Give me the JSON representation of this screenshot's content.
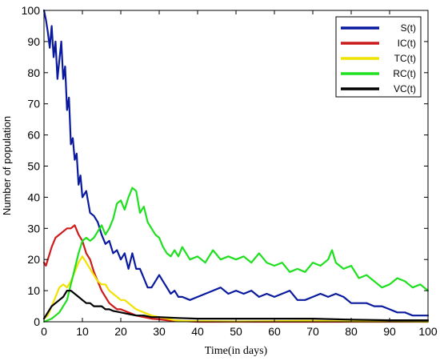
{
  "chart_data": {
    "type": "line",
    "title": "",
    "xlabel": "Time(in days)",
    "ylabel": "Number of population",
    "xlim": [
      0,
      100
    ],
    "ylim": [
      0,
      100
    ],
    "xticks": [
      "0",
      "10",
      "20",
      "30",
      "40",
      "50",
      "60",
      "70",
      "80",
      "90",
      "100"
    ],
    "yticks": [
      "0",
      "10",
      "20",
      "30",
      "40",
      "50",
      "60",
      "70",
      "80",
      "90",
      "100"
    ],
    "grid": false,
    "legend_position": "top-right",
    "series": [
      {
        "name": "S(t)",
        "color": "#0a1a9e",
        "x": [
          0,
          0.5,
          1,
          1.5,
          2,
          2.5,
          3,
          3.5,
          4,
          4.5,
          5,
          5.5,
          6,
          6.5,
          7,
          7.5,
          8,
          8.5,
          9,
          9.5,
          10,
          11,
          12,
          13,
          14,
          15,
          16,
          17,
          18,
          19,
          20,
          21,
          22,
          23,
          24,
          25,
          26,
          27,
          28,
          29,
          30,
          31,
          32,
          33,
          34,
          35,
          36,
          38,
          40,
          42,
          44,
          46,
          48,
          50,
          52,
          54,
          56,
          58,
          60,
          62,
          64,
          66,
          68,
          70,
          72,
          74,
          76,
          78,
          80,
          82,
          84,
          86,
          88,
          90,
          92,
          94,
          96,
          98,
          100
        ],
        "y": [
          100,
          97,
          93,
          88,
          95,
          85,
          90,
          78,
          84,
          90,
          78,
          82,
          68,
          72,
          57,
          59,
          52,
          54,
          44,
          47,
          40,
          42,
          35,
          34,
          32,
          28,
          25,
          26,
          22,
          23,
          20,
          22,
          17,
          22,
          17,
          17,
          14,
          11,
          11,
          13,
          15,
          13,
          11,
          9,
          10,
          8,
          8,
          7,
          8,
          9,
          10,
          11,
          9,
          10,
          9,
          10,
          8,
          9,
          8,
          9,
          10,
          7,
          7,
          8,
          9,
          8,
          9,
          8,
          6,
          6,
          6,
          5,
          5,
          4,
          3,
          3,
          2,
          2,
          2
        ]
      },
      {
        "name": "IC(t)",
        "color": "#cc1b1b",
        "x": [
          0,
          0.5,
          1,
          1.5,
          2,
          3,
          4,
          5,
          6,
          7,
          8,
          9,
          10,
          11,
          12,
          13,
          14,
          15,
          16,
          17,
          18,
          19,
          20,
          22,
          24,
          26,
          28,
          30,
          32,
          34,
          36,
          40,
          50,
          60,
          70,
          80,
          90,
          100
        ],
        "y": [
          19,
          18,
          20,
          22,
          24,
          27,
          28,
          29,
          30,
          30,
          31,
          28,
          26,
          22,
          20,
          16,
          13,
          10,
          8,
          6,
          5,
          4,
          4,
          3,
          2,
          1.5,
          1,
          0.8,
          0.5,
          0.3,
          0.2,
          0,
          0,
          0,
          0,
          0,
          0,
          0
        ]
      },
      {
        "name": "TC(t)",
        "color": "#f2e200",
        "x": [
          0,
          1,
          2,
          3,
          4,
          5,
          6,
          7,
          8,
          9,
          10,
          11,
          12,
          13,
          14,
          15,
          16,
          17,
          18,
          19,
          20,
          21,
          22,
          24,
          26,
          28,
          30,
          32,
          34,
          36,
          40,
          50,
          60,
          70,
          80,
          90,
          100
        ],
        "y": [
          1,
          2,
          5,
          8,
          11,
          12,
          11,
          13,
          16,
          19,
          21,
          19,
          17,
          15,
          13,
          12,
          12,
          10,
          9,
          8,
          7,
          7,
          6,
          4,
          3,
          2,
          1.5,
          1,
          0.5,
          0.3,
          0.2,
          0.1,
          0.2,
          0.3,
          0.1,
          0.1,
          0
        ]
      },
      {
        "name": "RC(t)",
        "color": "#1ee01e",
        "x": [
          0,
          2,
          4,
          6,
          7,
          8,
          9,
          10,
          11,
          12,
          13,
          14,
          15,
          16,
          17,
          18,
          19,
          20,
          21,
          22,
          23,
          24,
          25,
          26,
          27,
          28,
          29,
          30,
          31,
          32,
          33,
          34,
          35,
          36,
          38,
          40,
          42,
          44,
          46,
          48,
          50,
          52,
          54,
          56,
          58,
          60,
          62,
          64,
          66,
          68,
          70,
          72,
          74,
          75,
          76,
          78,
          80,
          82,
          84,
          86,
          88,
          90,
          92,
          94,
          96,
          98,
          100
        ],
        "y": [
          0,
          1,
          3,
          7,
          12,
          17,
          22,
          26,
          27,
          26,
          27,
          29,
          31,
          28,
          30,
          33,
          38,
          39,
          36,
          40,
          43,
          42,
          35,
          37,
          32,
          30,
          28,
          27,
          24,
          22,
          21,
          23,
          21,
          24,
          20,
          21,
          19,
          23,
          20,
          21,
          20,
          21,
          19,
          22,
          19,
          18,
          19,
          16,
          17,
          16,
          19,
          18,
          20,
          23,
          19,
          17,
          18,
          14,
          15,
          13,
          11,
          12,
          14,
          13,
          11,
          12,
          10
        ]
      },
      {
        "name": "VC(t)",
        "color": "#000000",
        "x": [
          0,
          1,
          2,
          3,
          4,
          5,
          6,
          7,
          8,
          9,
          10,
          11,
          12,
          13,
          14,
          15,
          16,
          17,
          18,
          20,
          22,
          24,
          26,
          28,
          30,
          35,
          40,
          50,
          60,
          70,
          80,
          90,
          100
        ],
        "y": [
          1,
          3,
          5,
          6,
          7,
          8,
          10,
          10,
          9,
          8,
          7,
          6,
          6,
          5,
          5,
          5,
          4,
          4,
          3.5,
          3,
          2.5,
          2,
          2,
          1.5,
          1.5,
          1.2,
          1,
          1,
          1,
          1,
          0.7,
          0.5,
          0.5
        ]
      }
    ]
  }
}
